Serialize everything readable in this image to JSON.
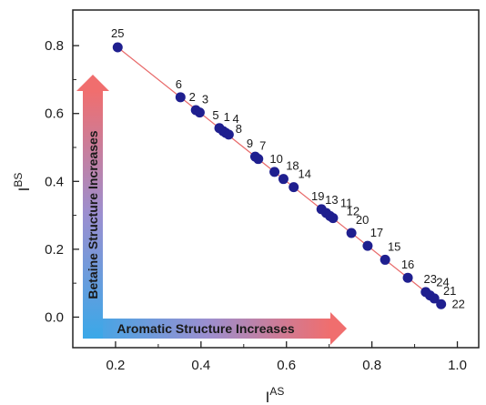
{
  "chart_data": {
    "type": "scatter",
    "xlabel": "I",
    "xlabel_sup": "AS",
    "ylabel": "I",
    "ylabel_sup": "BS",
    "xlim": [
      0.1,
      1.05
    ],
    "ylim": [
      -0.09,
      0.905
    ],
    "xticks": [
      0.2,
      0.4,
      0.6,
      0.8,
      1.0
    ],
    "xtick_labels": [
      "0.2",
      "0.4",
      "0.6",
      "0.8",
      "1.0"
    ],
    "yticks": [
      0.0,
      0.2,
      0.4,
      0.6,
      0.8
    ],
    "ytick_labels": [
      "0.0",
      "0.2",
      "0.4",
      "0.6",
      "0.8"
    ],
    "grid": false,
    "point_color": "#1f1f8f",
    "line_color": "#e86a6a",
    "fit_line": {
      "x": [
        0.205,
        0.96
      ],
      "y": [
        0.795,
        0.04
      ]
    },
    "points": [
      {
        "label": "25",
        "x": 0.205,
        "y": 0.795
      },
      {
        "label": "6",
        "x": 0.352,
        "y": 0.648
      },
      {
        "label": "2",
        "x": 0.388,
        "y": 0.61
      },
      {
        "label": "3",
        "x": 0.397,
        "y": 0.603
      },
      {
        "label": "5",
        "x": 0.443,
        "y": 0.557
      },
      {
        "label": "1",
        "x": 0.452,
        "y": 0.548
      },
      {
        "label": "4",
        "x": 0.458,
        "y": 0.543
      },
      {
        "label": "8",
        "x": 0.465,
        "y": 0.538
      },
      {
        "label": "9",
        "x": 0.527,
        "y": 0.473
      },
      {
        "label": "7",
        "x": 0.534,
        "y": 0.466
      },
      {
        "label": "10",
        "x": 0.572,
        "y": 0.428
      },
      {
        "label": "18",
        "x": 0.593,
        "y": 0.407
      },
      {
        "label": "14",
        "x": 0.617,
        "y": 0.383
      },
      {
        "label": "19",
        "x": 0.682,
        "y": 0.318
      },
      {
        "label": "13",
        "x": 0.693,
        "y": 0.307
      },
      {
        "label": "11",
        "x": 0.702,
        "y": 0.298
      },
      {
        "label": "12",
        "x": 0.709,
        "y": 0.292
      },
      {
        "label": "20",
        "x": 0.752,
        "y": 0.248
      },
      {
        "label": "17",
        "x": 0.79,
        "y": 0.21
      },
      {
        "label": "15",
        "x": 0.831,
        "y": 0.169
      },
      {
        "label": "16",
        "x": 0.884,
        "y": 0.116
      },
      {
        "label": "23",
        "x": 0.926,
        "y": 0.074
      },
      {
        "label": "24",
        "x": 0.936,
        "y": 0.064
      },
      {
        "label": "21",
        "x": 0.946,
        "y": 0.055
      },
      {
        "label": "22",
        "x": 0.962,
        "y": 0.038
      }
    ],
    "annotations": {
      "vertical_arrow": "Betaine Structure Increases",
      "horizontal_arrow": "Aromatic Structure Increases"
    }
  }
}
